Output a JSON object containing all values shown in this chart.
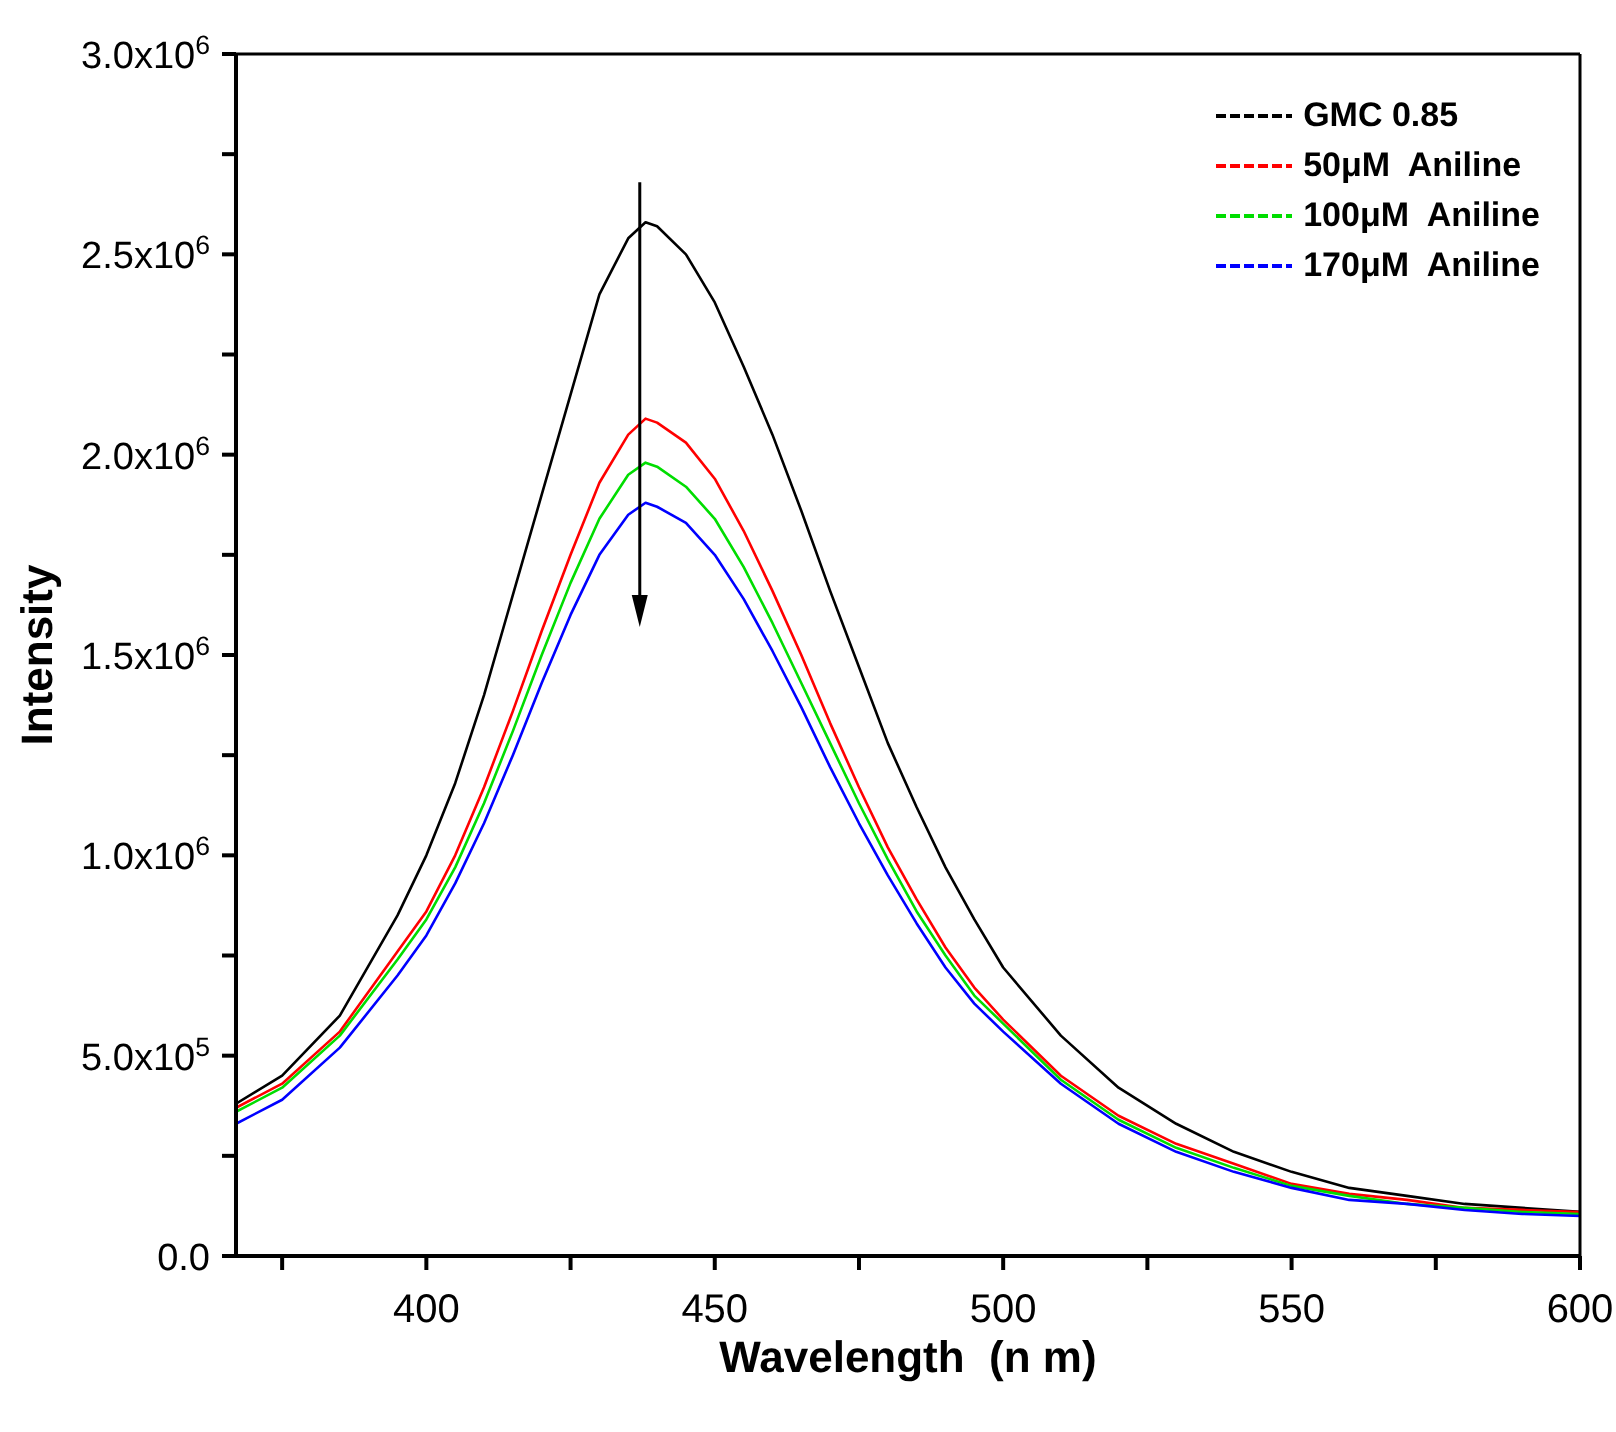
{
  "chart_data": {
    "type": "line",
    "xlabel": "Wavelength  (n m)",
    "ylabel": "Intensity",
    "x": [
      367,
      375,
      385,
      395,
      400,
      405,
      410,
      415,
      420,
      425,
      430,
      435,
      438,
      440,
      445,
      450,
      455,
      460,
      465,
      470,
      475,
      480,
      485,
      490,
      495,
      500,
      510,
      520,
      530,
      540,
      550,
      560,
      570,
      580,
      590,
      600
    ],
    "xlim": [
      367,
      600
    ],
    "xticks": [
      {
        "value": 375,
        "label": null
      },
      400,
      {
        "value": 425,
        "label": null
      },
      450,
      {
        "value": 475,
        "label": null
      },
      500,
      {
        "value": 525,
        "label": null
      },
      550,
      {
        "value": 575,
        "label": null
      },
      600
    ],
    "ylim": [
      0,
      3000000
    ],
    "yticks": [
      {
        "value": 0,
        "label": "0.0"
      },
      {
        "value": 250000,
        "label": null
      },
      {
        "value": 500000,
        "label": "5.0x10$^{5}$"
      },
      {
        "value": 750000,
        "label": null
      },
      {
        "value": 1000000,
        "label": "1.0x10$^{6}$"
      },
      {
        "value": 1250000,
        "label": null
      },
      {
        "value": 1500000,
        "label": "1.5x10$^{6}$"
      },
      {
        "value": 1750000,
        "label": null
      },
      {
        "value": 2000000,
        "label": "2.0x10$^{6}$"
      },
      {
        "value": 2250000,
        "label": null
      },
      {
        "value": 2500000,
        "label": "2.5x10$^{6}$"
      },
      {
        "value": 2750000,
        "label": null
      },
      {
        "value": 3000000,
        "label": "3.0x10$^{6}$"
      }
    ],
    "series": [
      {
        "name": "GMC 0.85",
        "color": "#000000",
        "values": [
          380000.0,
          450000.0,
          600000.0,
          850000.0,
          1000000.0,
          1180000.0,
          1400000.0,
          1650000.0,
          1900000.0,
          2150000.0,
          2400000.0,
          2540000.0,
          2580000.0,
          2570000.0,
          2500000.0,
          2380000.0,
          2220000.0,
          2050000.0,
          1860000.0,
          1660000.0,
          1470000.0,
          1280000.0,
          1120000.0,
          970000.0,
          840000.0,
          720000.0,
          550000.0,
          420000.0,
          330000.0,
          260000.0,
          210000.0,
          170000.0,
          150000.0,
          130000.0,
          120000.0,
          110000.0
        ]
      },
      {
        "name": "50μM  Aniline",
        "color": "#ff0000",
        "values": [
          370000.0,
          430000.0,
          560000.0,
          760000.0,
          860000.0,
          1000000.0,
          1170000.0,
          1360000.0,
          1560000.0,
          1750000.0,
          1930000.0,
          2050000.0,
          2090000.0,
          2080000.0,
          2030000.0,
          1940000.0,
          1810000.0,
          1660000.0,
          1500000.0,
          1330000.0,
          1170000.0,
          1020000.0,
          890000.0,
          770000.0,
          670000.0,
          590000.0,
          450000.0,
          350000.0,
          280000.0,
          230000.0,
          180000.0,
          155000.0,
          140000.0,
          120000.0,
          115000.0,
          110000.0
        ]
      },
      {
        "name": "100μM  Aniline",
        "color": "#00dd00",
        "values": [
          360000.0,
          420000.0,
          550000.0,
          740000.0,
          840000.0,
          970000.0,
          1130000.0,
          1310000.0,
          1500000.0,
          1680000.0,
          1840000.0,
          1950000.0,
          1980000.0,
          1970000.0,
          1920000.0,
          1840000.0,
          1720000.0,
          1580000.0,
          1430000.0,
          1280000.0,
          1130000.0,
          990000.0,
          860000.0,
          750000.0,
          650000.0,
          580000.0,
          440000.0,
          340000.0,
          270000.0,
          220000.0,
          175000.0,
          150000.0,
          130000.0,
          120000.0,
          110000.0,
          105000.0
        ]
      },
      {
        "name": "170μM  Aniline",
        "color": "#0000ff",
        "values": [
          330000.0,
          390000.0,
          520000.0,
          700000.0,
          800000.0,
          930000.0,
          1080000.0,
          1250000.0,
          1430000.0,
          1600000.0,
          1750000.0,
          1850000.0,
          1880000.0,
          1870000.0,
          1830000.0,
          1750000.0,
          1640000.0,
          1510000.0,
          1370000.0,
          1220000.0,
          1080000.0,
          950000.0,
          830000.0,
          720000.0,
          630000.0,
          560000.0,
          430000.0,
          330000.0,
          260000.0,
          210000.0,
          170000.0,
          140000.0,
          130000.0,
          115000.0,
          105000.0,
          100000.0
        ]
      }
    ],
    "legend": "top right",
    "grid": false,
    "marker": "none",
    "line_style": "solid"
  }
}
